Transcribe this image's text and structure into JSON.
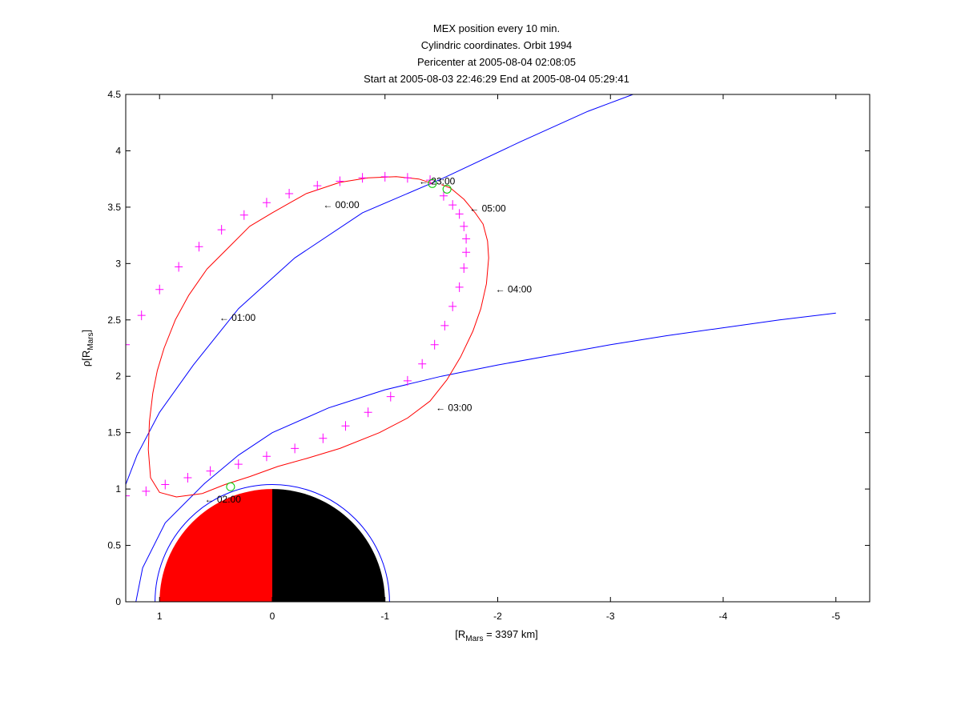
{
  "chart_data": {
    "type": "line",
    "title_lines": [
      "MEX position every 10 min.",
      "Cylindric coordinates. Orbit 1994",
      "Pericenter at 2005-08-04 02:08:05",
      "Start at 2005-08-03 22:46:29 End at 2005-08-04 05:29:41"
    ],
    "xlabel": {
      "pre": "[R",
      "sub": "Mars",
      "post": " = 3397 km]"
    },
    "ylabel": {
      "pre": "ρ[R",
      "sub": "Mars",
      "post": "]"
    },
    "xlim": [
      1.3,
      -5.3
    ],
    "ylim": [
      0,
      4.5
    ],
    "xticks": [
      1,
      0,
      -1,
      -2,
      -3,
      -4,
      -5
    ],
    "xtick_labels": [
      "1",
      "0",
      "-1",
      "-2",
      "-3",
      "-4",
      "-5"
    ],
    "yticks": [
      0,
      0.5,
      1,
      1.5,
      2,
      2.5,
      3,
      3.5,
      4,
      4.5
    ],
    "ytick_labels": [
      "0",
      "0.5",
      "1",
      "1.5",
      "2",
      "2.5",
      "3",
      "3.5",
      "4",
      "4.5"
    ],
    "colors": {
      "orbit": "#ff0000",
      "markers": "#ff00ff",
      "boundaries": "#0000ff",
      "crossings": "#00cc00",
      "mars_day": "#ff0000",
      "mars_night": "#000000",
      "mars_outline": "#0000ff"
    },
    "planet": {
      "radius": 1.0,
      "outline_radius": 1.04
    },
    "orbit_samples": [
      [
        -1.42,
        3.71
      ],
      [
        -1.3,
        3.75
      ],
      [
        -1.1,
        3.77
      ],
      [
        -0.85,
        3.76
      ],
      [
        -0.6,
        3.72
      ],
      [
        -0.3,
        3.62
      ],
      [
        0.0,
        3.45
      ],
      [
        0.2,
        3.33
      ],
      [
        0.4,
        3.13
      ],
      [
        0.58,
        2.95
      ],
      [
        0.74,
        2.72
      ],
      [
        0.86,
        2.5
      ],
      [
        0.96,
        2.25
      ],
      [
        1.02,
        2.05
      ],
      [
        1.06,
        1.85
      ],
      [
        1.09,
        1.6
      ],
      [
        1.1,
        1.35
      ],
      [
        1.08,
        1.1
      ],
      [
        1.0,
        0.97
      ],
      [
        0.85,
        0.93
      ],
      [
        0.62,
        0.96
      ],
      [
        0.42,
        1.04
      ],
      [
        0.2,
        1.11
      ],
      [
        -0.05,
        1.2
      ],
      [
        -0.3,
        1.27
      ],
      [
        -0.6,
        1.36
      ],
      [
        -0.95,
        1.5
      ],
      [
        -1.2,
        1.63
      ],
      [
        -1.4,
        1.78
      ],
      [
        -1.55,
        1.97
      ],
      [
        -1.67,
        2.17
      ],
      [
        -1.78,
        2.4
      ],
      [
        -1.85,
        2.6
      ],
      [
        -1.9,
        2.82
      ],
      [
        -1.92,
        3.05
      ],
      [
        -1.91,
        3.2
      ],
      [
        -1.87,
        3.35
      ],
      [
        -1.8,
        3.45
      ],
      [
        -1.7,
        3.57
      ],
      [
        -1.58,
        3.67
      ],
      [
        -1.5,
        3.7
      ]
    ],
    "orbit_markers": [
      [
        -1.4,
        3.74
      ],
      [
        -1.2,
        3.76
      ],
      [
        -1.0,
        3.77
      ],
      [
        -0.8,
        3.76
      ],
      [
        -0.6,
        3.73
      ],
      [
        -0.4,
        3.69
      ],
      [
        -0.15,
        3.62
      ],
      [
        0.05,
        3.54
      ],
      [
        0.25,
        3.43
      ],
      [
        0.45,
        3.3
      ],
      [
        0.65,
        3.15
      ],
      [
        0.83,
        2.97
      ],
      [
        1.0,
        2.77
      ],
      [
        1.16,
        2.54
      ],
      [
        1.3,
        2.28
      ],
      [
        1.41,
        1.99
      ],
      [
        1.47,
        1.66
      ],
      [
        1.49,
        1.32
      ],
      [
        1.44,
        1.03
      ],
      [
        1.3,
        0.94
      ],
      [
        1.12,
        0.98
      ],
      [
        0.95,
        1.04
      ],
      [
        0.75,
        1.1
      ],
      [
        0.55,
        1.16
      ],
      [
        0.3,
        1.22
      ],
      [
        0.05,
        1.29
      ],
      [
        -0.2,
        1.36
      ],
      [
        -0.45,
        1.45
      ],
      [
        -0.65,
        1.56
      ],
      [
        -0.85,
        1.68
      ],
      [
        -1.05,
        1.82
      ],
      [
        -1.2,
        1.96
      ],
      [
        -1.33,
        2.11
      ],
      [
        -1.44,
        2.28
      ],
      [
        -1.53,
        2.45
      ],
      [
        -1.6,
        2.62
      ],
      [
        -1.66,
        2.79
      ],
      [
        -1.7,
        2.96
      ],
      [
        -1.72,
        3.1
      ],
      [
        -1.72,
        3.22
      ],
      [
        -1.7,
        3.33
      ],
      [
        -1.66,
        3.44
      ],
      [
        -1.6,
        3.52
      ],
      [
        -1.52,
        3.6
      ]
    ],
    "crossings": [
      [
        -1.42,
        3.71
      ],
      [
        -1.55,
        3.66
      ],
      [
        0.37,
        1.02
      ]
    ],
    "boundaries": [
      {
        "points": [
          [
            1.3,
            1.04
          ],
          [
            1.2,
            1.3
          ],
          [
            1.0,
            1.68
          ],
          [
            0.7,
            2.1
          ],
          [
            0.3,
            2.6
          ],
          [
            -0.2,
            3.05
          ],
          [
            -0.8,
            3.45
          ],
          [
            -1.5,
            3.75
          ],
          [
            -2.2,
            4.08
          ],
          [
            -2.8,
            4.35
          ],
          [
            -3.2,
            4.5
          ]
        ]
      },
      {
        "points": [
          [
            1.21,
            0.0
          ],
          [
            1.15,
            0.3
          ],
          [
            0.95,
            0.7
          ],
          [
            0.6,
            1.05
          ],
          [
            0.3,
            1.3
          ],
          [
            0.0,
            1.5
          ],
          [
            -0.5,
            1.72
          ],
          [
            -1.0,
            1.88
          ],
          [
            -1.5,
            2.0
          ],
          [
            -2.0,
            2.1
          ],
          [
            -2.5,
            2.19
          ],
          [
            -3.0,
            2.28
          ],
          [
            -3.5,
            2.36
          ],
          [
            -4.0,
            2.43
          ],
          [
            -4.5,
            2.5
          ],
          [
            -5.0,
            2.56
          ]
        ]
      }
    ],
    "time_labels": [
      {
        "text": "← 23:00",
        "x": -1.3,
        "y": 3.73
      },
      {
        "text": "← 00:00",
        "x": -0.45,
        "y": 3.52
      },
      {
        "text": "← 05:00",
        "x": -1.75,
        "y": 3.49
      },
      {
        "text": "← 04:00",
        "x": -1.98,
        "y": 2.77
      },
      {
        "text": "← 01:00",
        "x": 0.47,
        "y": 2.52
      },
      {
        "text": "← 03:00",
        "x": -1.45,
        "y": 1.72
      },
      {
        "text": "← 02:00",
        "x": 0.6,
        "y": 0.91
      }
    ]
  }
}
